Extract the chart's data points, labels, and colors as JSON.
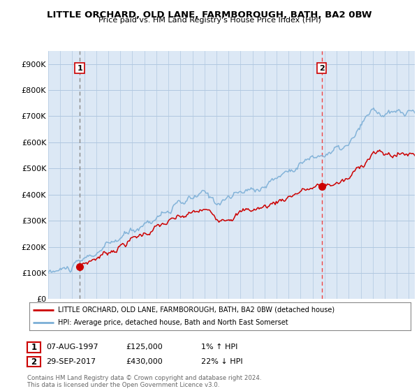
{
  "title": "LITTLE ORCHARD, OLD LANE, FARMBOROUGH, BATH, BA2 0BW",
  "subtitle": "Price paid vs. HM Land Registry's House Price Index (HPI)",
  "ylabel_ticks": [
    "£0",
    "£100K",
    "£200K",
    "£300K",
    "£400K",
    "£500K",
    "£600K",
    "£700K",
    "£800K",
    "£900K"
  ],
  "ytick_values": [
    0,
    100000,
    200000,
    300000,
    400000,
    500000,
    600000,
    700000,
    800000,
    900000
  ],
  "ylim": [
    0,
    950000
  ],
  "xlim_start": 1995.0,
  "xlim_end": 2025.5,
  "xtick_years": [
    1995,
    1996,
    1997,
    1998,
    1999,
    2000,
    2001,
    2002,
    2003,
    2004,
    2005,
    2006,
    2007,
    2008,
    2009,
    2010,
    2011,
    2012,
    2013,
    2014,
    2015,
    2016,
    2017,
    2018,
    2019,
    2020,
    2021,
    2022,
    2023,
    2024,
    2025
  ],
  "purchase1_x": 1997.62,
  "purchase1_y": 125000,
  "purchase1_label": "07-AUG-1997",
  "purchase1_price": "£125,000",
  "purchase1_hpi": "1% ↑ HPI",
  "purchase2_x": 2017.75,
  "purchase2_y": 430000,
  "purchase2_label": "29-SEP-2017",
  "purchase2_price": "£430,000",
  "purchase2_hpi": "22% ↓ HPI",
  "legend_line1": "LITTLE ORCHARD, OLD LANE, FARMBOROUGH, BATH, BA2 0BW (detached house)",
  "legend_line2": "HPI: Average price, detached house, Bath and North East Somerset",
  "footer1": "Contains HM Land Registry data © Crown copyright and database right 2024.",
  "footer2": "This data is licensed under the Open Government Licence v3.0.",
  "red_line_color": "#cc0000",
  "blue_line_color": "#7aaed6",
  "chart_bg_color": "#dce8f5",
  "background_color": "#ffffff",
  "grid_color": "#b0c8e0",
  "dashed1_color": "#888888",
  "dashed2_color": "#ee4444"
}
